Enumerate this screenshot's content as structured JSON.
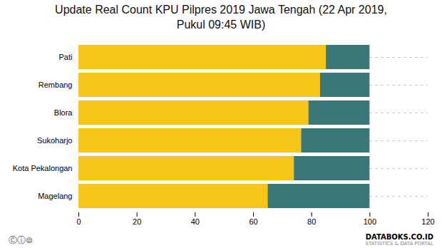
{
  "chart_data": {
    "type": "bar",
    "orientation": "horizontal",
    "stacked": true,
    "title": "Update Real Count KPU Pilpres 2019 Jawa Tengah (22 Apr 2019,\nPukul 09:45 WIB)",
    "categories": [
      "Magelang",
      "Kota Pekalongan",
      "Sukoharjo",
      "Blora",
      "Rembang",
      "Pati"
    ],
    "series": [
      {
        "color": "#F5C518",
        "values": [
          65.0,
          74.0,
          76.5,
          79.0,
          83.0,
          85.0
        ]
      },
      {
        "color": "#3A7878",
        "values": [
          35.0,
          26.0,
          23.5,
          21.0,
          17.0,
          15.0
        ]
      }
    ],
    "xlim": [
      0,
      120
    ],
    "xticks": [
      0,
      20,
      40,
      60,
      80,
      100,
      120
    ],
    "grid": "y",
    "annotations": [
      "DATABOKS",
      ".CO.ID",
      "STATISTICS & DATA PORTAL",
      "Ⓒⓘ⊜"
    ]
  }
}
